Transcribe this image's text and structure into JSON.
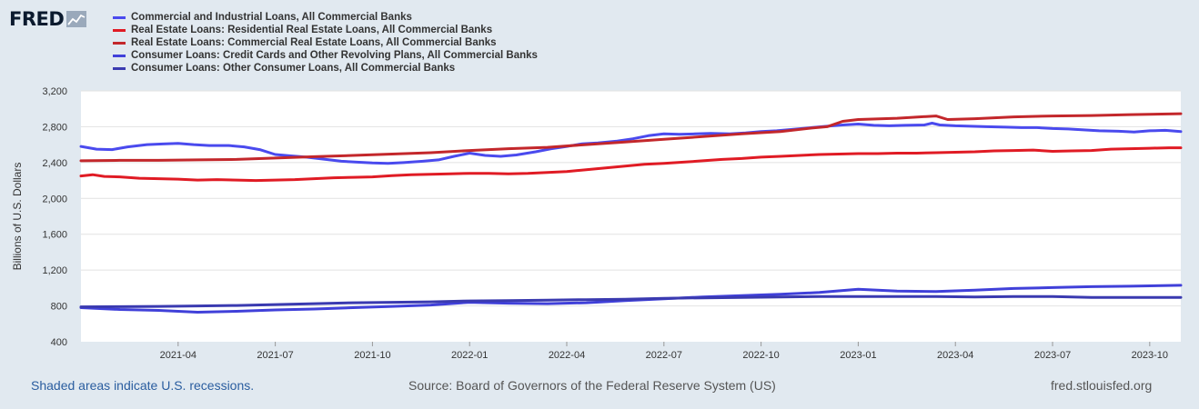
{
  "logo": {
    "text": "FRED",
    "icon": "chart-line-icon"
  },
  "footer": {
    "recessions_note": "Shaded areas indicate U.S. recessions.",
    "source": "Source: Board of Governors of the Federal Reserve System (US)",
    "site": "fred.stlouisfed.org"
  },
  "chart_data": {
    "type": "line",
    "title": "",
    "xlabel": "",
    "ylabel": "Billions of U.S. Dollars",
    "ylim": [
      400,
      3200
    ],
    "yticks": [
      400,
      800,
      1200,
      1600,
      2000,
      2400,
      2800,
      3200
    ],
    "ytick_labels": [
      "400",
      "800",
      "1,200",
      "1,600",
      "2,000",
      "2,400",
      "2,800",
      "3,200"
    ],
    "xlim": [
      2021.0,
      2023.83
    ],
    "xticks": [
      2021.25,
      2021.5,
      2021.75,
      2022.0,
      2022.25,
      2022.5,
      2022.75,
      2023.0,
      2023.25,
      2023.5,
      2023.75
    ],
    "xtick_labels": [
      "2021-04",
      "2021-07",
      "2021-10",
      "2022-01",
      "2022-04",
      "2022-07",
      "2022-10",
      "2023-01",
      "2023-04",
      "2023-07",
      "2023-10"
    ],
    "grid": true,
    "legend_position": "top-left",
    "series": [
      {
        "name": "Commercial and Industrial Loans, All Commercial Banks",
        "color": "#4a4aee",
        "x": [
          2021.0,
          2021.04,
          2021.08,
          2021.12,
          2021.17,
          2021.21,
          2021.25,
          2021.29,
          2021.33,
          2021.38,
          2021.42,
          2021.46,
          2021.5,
          2021.54,
          2021.58,
          2021.62,
          2021.67,
          2021.71,
          2021.75,
          2021.79,
          2021.83,
          2021.88,
          2021.92,
          2021.96,
          2022.0,
          2022.04,
          2022.08,
          2022.12,
          2022.17,
          2022.21,
          2022.25,
          2022.29,
          2022.33,
          2022.38,
          2022.42,
          2022.46,
          2022.5,
          2022.54,
          2022.58,
          2022.62,
          2022.67,
          2022.71,
          2022.75,
          2022.79,
          2022.83,
          2022.88,
          2022.92,
          2022.96,
          2023.0,
          2023.04,
          2023.08,
          2023.12,
          2023.17,
          2023.19,
          2023.21,
          2023.25,
          2023.29,
          2023.33,
          2023.38,
          2023.42,
          2023.46,
          2023.5,
          2023.54,
          2023.58,
          2023.62,
          2023.67,
          2023.71,
          2023.75,
          2023.79,
          2023.83
        ],
        "values": [
          2580,
          2550,
          2545,
          2575,
          2600,
          2608,
          2615,
          2600,
          2590,
          2590,
          2575,
          2545,
          2490,
          2475,
          2460,
          2440,
          2415,
          2405,
          2395,
          2390,
          2400,
          2415,
          2430,
          2470,
          2505,
          2480,
          2470,
          2485,
          2520,
          2555,
          2580,
          2610,
          2620,
          2640,
          2665,
          2700,
          2720,
          2715,
          2720,
          2725,
          2720,
          2730,
          2745,
          2755,
          2770,
          2790,
          2805,
          2820,
          2830,
          2815,
          2810,
          2815,
          2820,
          2840,
          2820,
          2810,
          2805,
          2800,
          2795,
          2790,
          2790,
          2780,
          2775,
          2765,
          2755,
          2750,
          2740,
          2755,
          2760,
          2745
        ]
      },
      {
        "name": "Real Estate Loans: Residential Real Estate Loans, All Commercial Banks",
        "color": "#e01b24",
        "x": [
          2021.0,
          2021.03,
          2021.06,
          2021.1,
          2021.15,
          2021.2,
          2021.25,
          2021.3,
          2021.35,
          2021.4,
          2021.45,
          2021.5,
          2021.55,
          2021.6,
          2021.65,
          2021.7,
          2021.75,
          2021.8,
          2021.85,
          2021.9,
          2021.95,
          2022.0,
          2022.05,
          2022.1,
          2022.15,
          2022.2,
          2022.25,
          2022.3,
          2022.35,
          2022.4,
          2022.45,
          2022.5,
          2022.55,
          2022.6,
          2022.65,
          2022.7,
          2022.75,
          2022.8,
          2022.85,
          2022.9,
          2022.95,
          2023.0,
          2023.05,
          2023.1,
          2023.15,
          2023.2,
          2023.25,
          2023.3,
          2023.35,
          2023.4,
          2023.45,
          2023.5,
          2023.55,
          2023.6,
          2023.65,
          2023.7,
          2023.75,
          2023.8,
          2023.83
        ],
        "values": [
          2250,
          2265,
          2245,
          2240,
          2225,
          2220,
          2215,
          2205,
          2210,
          2205,
          2200,
          2205,
          2210,
          2220,
          2230,
          2235,
          2240,
          2255,
          2265,
          2270,
          2275,
          2280,
          2280,
          2275,
          2280,
          2290,
          2300,
          2320,
          2340,
          2360,
          2380,
          2390,
          2405,
          2420,
          2435,
          2445,
          2460,
          2470,
          2480,
          2490,
          2495,
          2500,
          2500,
          2505,
          2505,
          2510,
          2515,
          2520,
          2530,
          2535,
          2540,
          2525,
          2530,
          2535,
          2550,
          2555,
          2560,
          2565,
          2565
        ]
      },
      {
        "name": "Real Estate Loans: Commercial Real Estate Loans, All Commercial Banks",
        "color": "#c3272b",
        "x": [
          2021.0,
          2021.1,
          2021.2,
          2021.3,
          2021.4,
          2021.5,
          2021.6,
          2021.7,
          2021.8,
          2021.9,
          2022.0,
          2022.1,
          2022.2,
          2022.3,
          2022.4,
          2022.5,
          2022.6,
          2022.7,
          2022.8,
          2022.88,
          2022.92,
          2022.96,
          2023.0,
          2023.1,
          2023.18,
          2023.2,
          2023.23,
          2023.3,
          2023.4,
          2023.5,
          2023.6,
          2023.7,
          2023.83
        ],
        "values": [
          2420,
          2425,
          2425,
          2430,
          2435,
          2450,
          2465,
          2480,
          2495,
          2510,
          2535,
          2555,
          2570,
          2600,
          2630,
          2660,
          2690,
          2720,
          2745,
          2785,
          2800,
          2860,
          2880,
          2895,
          2915,
          2920,
          2880,
          2890,
          2910,
          2920,
          2925,
          2935,
          2945
        ]
      },
      {
        "name": "Consumer Loans: Credit Cards and Other Revolving Plans, All Commercial Banks",
        "color": "#4040d9",
        "x": [
          2021.0,
          2021.1,
          2021.2,
          2021.3,
          2021.4,
          2021.5,
          2021.6,
          2021.7,
          2021.8,
          2021.9,
          2022.0,
          2022.1,
          2022.2,
          2022.3,
          2022.4,
          2022.5,
          2022.6,
          2022.7,
          2022.8,
          2022.9,
          2023.0,
          2023.1,
          2023.2,
          2023.3,
          2023.4,
          2023.5,
          2023.6,
          2023.7,
          2023.83
        ],
        "values": [
          780,
          760,
          750,
          730,
          740,
          755,
          765,
          780,
          795,
          810,
          840,
          830,
          825,
          835,
          860,
          880,
          900,
          915,
          930,
          950,
          985,
          965,
          960,
          975,
          995,
          1005,
          1015,
          1020,
          1030
        ]
      },
      {
        "name": "Consumer Loans: Other Consumer Loans, All Commercial Banks",
        "color": "#3a3ab0",
        "x": [
          2021.0,
          2021.1,
          2021.2,
          2021.3,
          2021.4,
          2021.5,
          2021.6,
          2021.7,
          2021.8,
          2021.9,
          2022.0,
          2022.1,
          2022.2,
          2022.3,
          2022.4,
          2022.5,
          2022.6,
          2022.7,
          2022.8,
          2022.9,
          2023.0,
          2023.1,
          2023.2,
          2023.3,
          2023.4,
          2023.5,
          2023.6,
          2023.7,
          2023.83
        ],
        "values": [
          790,
          792,
          795,
          800,
          805,
          815,
          825,
          835,
          840,
          845,
          855,
          860,
          865,
          870,
          875,
          885,
          890,
          895,
          900,
          905,
          905,
          905,
          905,
          900,
          905,
          905,
          895,
          895,
          895
        ]
      }
    ]
  }
}
